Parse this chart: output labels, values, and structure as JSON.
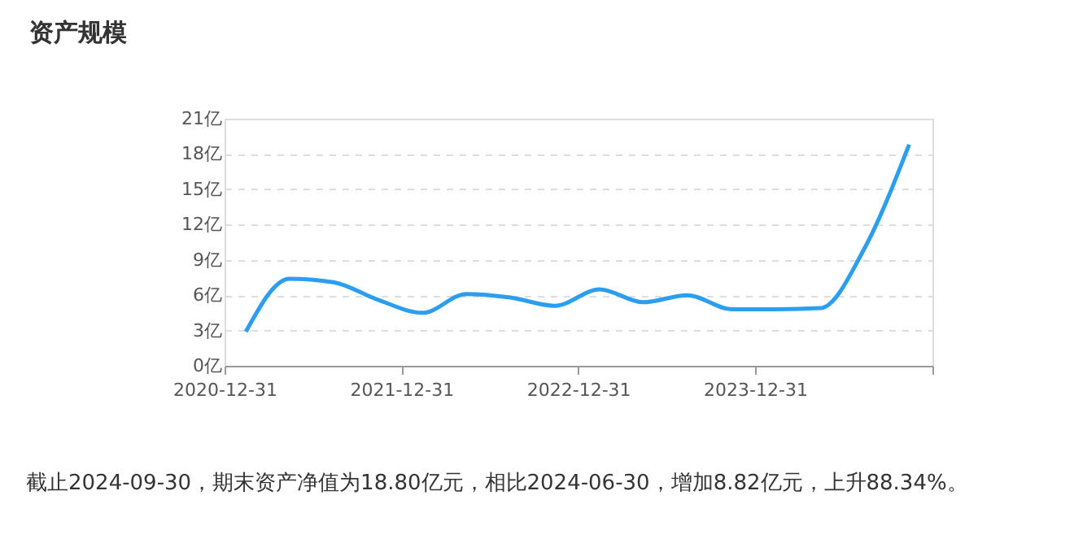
{
  "chart_data": {
    "type": "line",
    "title": "资产规模",
    "x": [
      "2020-12-31",
      "2021-03-31",
      "2021-06-30",
      "2021-09-30",
      "2021-12-31",
      "2022-03-31",
      "2022-06-30",
      "2022-09-30",
      "2022-12-31",
      "2023-03-31",
      "2023-06-30",
      "2023-09-30",
      "2023-12-31",
      "2024-03-31",
      "2024-06-30",
      "2024-09-30"
    ],
    "series": [
      {
        "color": "#2b9ef0",
        "values": [
          2.9,
          7.4,
          7.1,
          5.6,
          4.5,
          6.1,
          5.8,
          5.1,
          6.5,
          5.4,
          6.0,
          4.8,
          4.8,
          4.9,
          10.0,
          18.8
        ]
      }
    ],
    "xlim": [
      "2020-11-17",
      "2024-11-17"
    ],
    "xticks": [
      {
        "value": "2020-11-17",
        "label": "2020-12-31"
      },
      {
        "value": "2021-11-17",
        "label": "2021-12-31"
      },
      {
        "value": "2022-11-17",
        "label": "2022-12-31"
      },
      {
        "value": "2023-11-17",
        "label": "2023-12-31"
      },
      {
        "value": "2024-11-17",
        "label": null
      }
    ],
    "ylim": [
      0,
      21
    ],
    "yticks": [
      {
        "value": 0,
        "label": "0亿"
      },
      {
        "value": 3,
        "label": "3亿"
      },
      {
        "value": 6,
        "label": "6亿"
      },
      {
        "value": 9,
        "label": "9亿"
      },
      {
        "value": 12,
        "label": "12亿"
      },
      {
        "value": 15,
        "label": "15亿"
      },
      {
        "value": 18,
        "label": "18亿"
      },
      {
        "value": 21,
        "label": "21亿"
      }
    ],
    "grid": "y",
    "marker": "none",
    "legend": false,
    "annotations": [
      "截止2024-09-30，期末资产净值为18.80亿元，相比2024-06-30，增加8.82亿元，上升88.34%。"
    ]
  }
}
